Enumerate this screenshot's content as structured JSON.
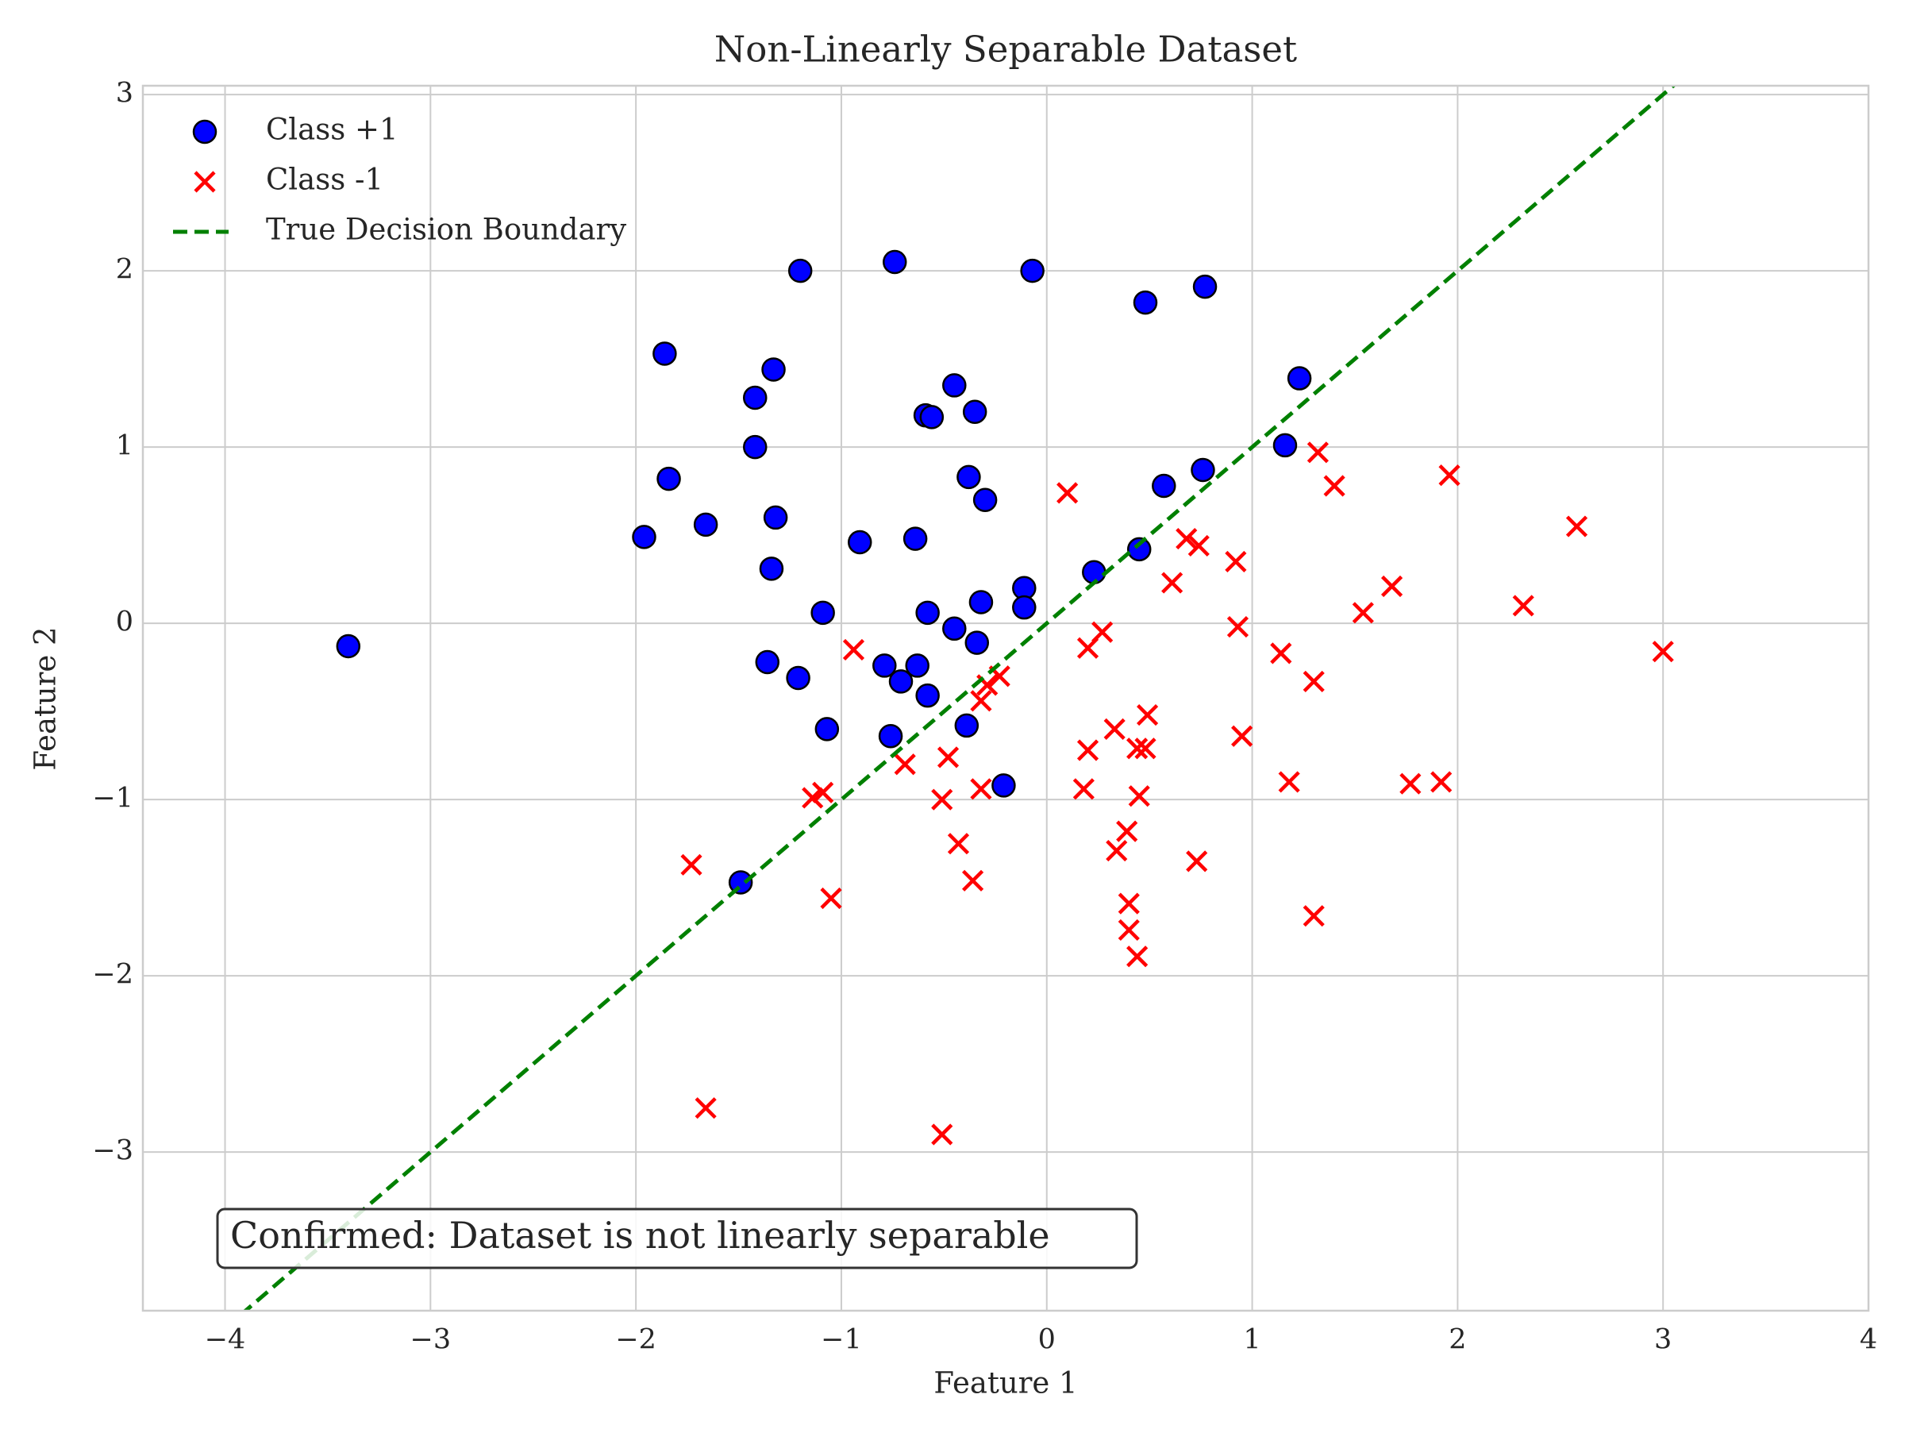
{
  "chart_data": {
    "type": "scatter",
    "title": "Non-Linearly Separable Dataset",
    "x_label": "Feature 1",
    "y_label": "Feature 2",
    "xlim": [
      -4.4,
      4.0
    ],
    "ylim": [
      -3.9,
      3.05
    ],
    "xticks": [
      {
        "value": -4,
        "label": "−4"
      },
      {
        "value": -3,
        "label": "−3"
      },
      {
        "value": -2,
        "label": "−2"
      },
      {
        "value": -1,
        "label": "−1"
      },
      0,
      1,
      2,
      3,
      4
    ],
    "yticks": [
      {
        "value": -3,
        "label": "−3"
      },
      {
        "value": -2,
        "label": "−2"
      },
      {
        "value": -1,
        "label": "−1"
      },
      0,
      1,
      2,
      3
    ],
    "grid": true,
    "legend": "upper left",
    "annotation": "Confirmed: Dataset is not linearly separable",
    "series": [
      {
        "name": "Class +1",
        "color": "blue",
        "marker": "o",
        "x": [
          -3.4,
          -1.2,
          -0.74,
          -0.07,
          0.48,
          0.77,
          -1.86,
          -1.33,
          -1.42,
          -0.45,
          -0.59,
          -0.56,
          -0.35,
          1.23,
          -1.42,
          1.16,
          -1.84,
          -0.38,
          -0.3,
          0.57,
          0.76,
          -1.66,
          -1.32,
          -1.96,
          -0.91,
          -0.64,
          0.45,
          -1.34,
          0.23,
          -0.11,
          -1.09,
          -0.58,
          -0.32,
          -0.11,
          -0.45,
          -0.34,
          -1.36,
          -1.21,
          -0.79,
          -0.63,
          -0.71,
          -0.58,
          -1.07,
          -0.76,
          -0.39,
          -0.21,
          -1.49
        ],
        "y": [
          -0.13,
          2.0,
          2.05,
          2.0,
          1.82,
          1.91,
          1.53,
          1.44,
          1.28,
          1.35,
          1.18,
          1.17,
          1.2,
          1.39,
          1.0,
          1.01,
          0.82,
          0.83,
          0.7,
          0.78,
          0.87,
          0.56,
          0.6,
          0.49,
          0.46,
          0.48,
          0.42,
          0.31,
          0.29,
          0.2,
          0.06,
          0.06,
          0.12,
          0.09,
          -0.03,
          -0.11,
          -0.22,
          -0.31,
          -0.24,
          -0.24,
          -0.33,
          -0.41,
          -0.6,
          -0.64,
          -0.58,
          -0.92,
          -1.47
        ]
      },
      {
        "name": "Class -1",
        "color": "red",
        "marker": "x",
        "x": [
          1.32,
          1.4,
          1.96,
          0.1,
          2.58,
          0.68,
          0.74,
          0.92,
          0.61,
          1.68,
          1.54,
          2.32,
          0.93,
          0.27,
          0.2,
          1.14,
          3.0,
          -0.94,
          1.3,
          -0.23,
          -0.29,
          -0.32,
          0.49,
          0.33,
          0.44,
          0.48,
          0.2,
          0.95,
          -0.48,
          -0.69,
          -0.32,
          0.18,
          0.45,
          1.18,
          1.77,
          1.92,
          -1.14,
          -1.09,
          -0.51,
          0.39,
          -0.43,
          0.34,
          -1.73,
          0.73,
          -0.36,
          -1.05,
          0.4,
          0.4,
          1.3,
          0.44,
          -1.66,
          -0.51
        ],
        "y": [
          0.97,
          0.78,
          0.84,
          0.74,
          0.55,
          0.48,
          0.44,
          0.35,
          0.23,
          0.21,
          0.06,
          0.1,
          -0.02,
          -0.05,
          -0.14,
          -0.17,
          -0.16,
          -0.15,
          -0.33,
          -0.3,
          -0.35,
          -0.44,
          -0.52,
          -0.6,
          -0.71,
          -0.71,
          -0.72,
          -0.64,
          -0.76,
          -0.8,
          -0.94,
          -0.94,
          -0.98,
          -0.9,
          -0.91,
          -0.9,
          -0.99,
          -0.96,
          -1.0,
          -1.18,
          -1.25,
          -1.29,
          -1.37,
          -1.35,
          -1.46,
          -1.56,
          -1.59,
          -1.74,
          -1.66,
          -1.89,
          -2.75,
          -2.9
        ]
      },
      {
        "name": "True Decision Boundary",
        "type": "line",
        "color": "green",
        "dash": true,
        "x": [
          -4.4,
          4.0
        ],
        "y": [
          -4.4,
          4.0
        ]
      }
    ]
  }
}
